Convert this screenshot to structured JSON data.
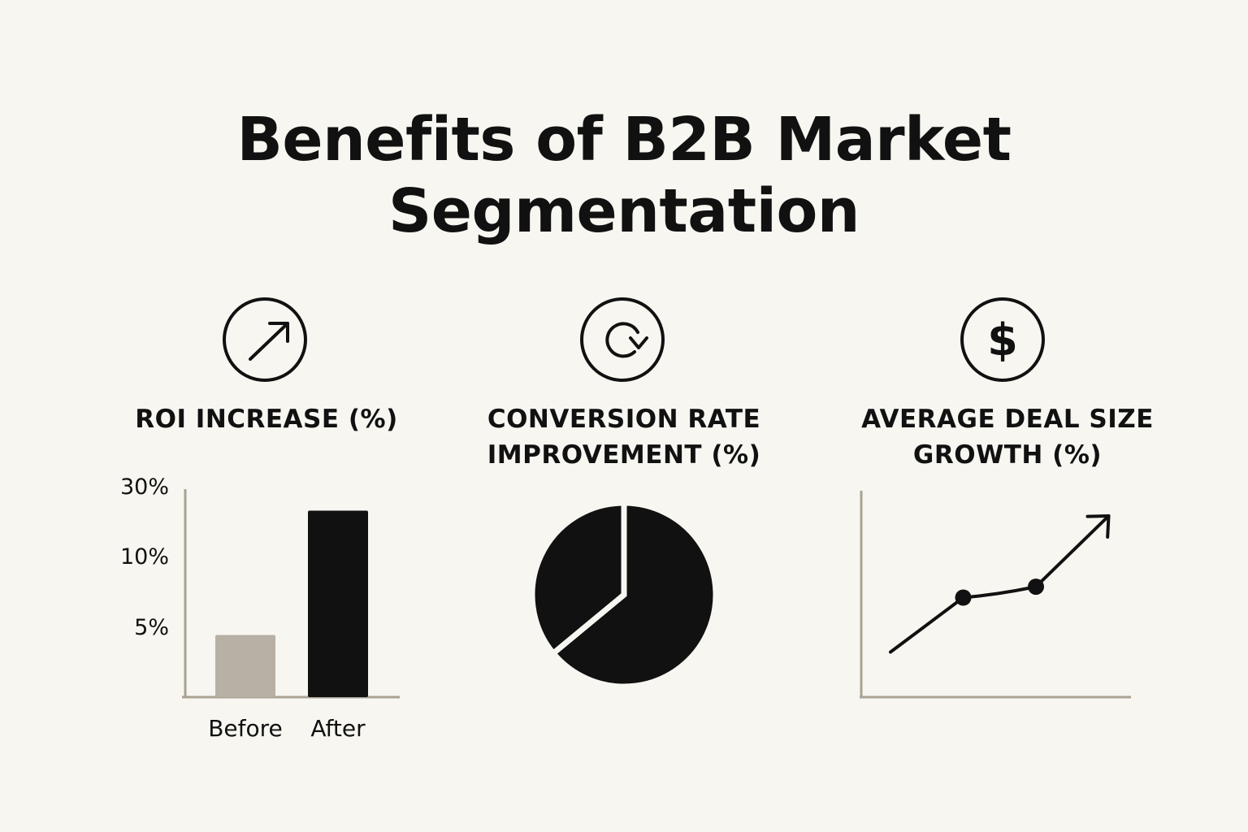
{
  "title": {
    "line1": "Benefits of B2B Market",
    "line2": "Segmentation"
  },
  "colors": {
    "background": "#f7f6f1",
    "ink": "#111111",
    "before_bar": "#b7b0a4",
    "axis": "#aaa294"
  },
  "panels": [
    {
      "icon": "arrow-up-right-icon",
      "title_lines": [
        "ROI INCREASE (%)"
      ]
    },
    {
      "icon": "refresh-icon",
      "title_lines": [
        "CONVERSION RATE",
        "IMPROVEMENT (%)"
      ]
    },
    {
      "icon": "dollar-icon",
      "title_lines": [
        "AVERAGE DEAL SIZE",
        "GROWTH (%)"
      ]
    }
  ],
  "chart_data": [
    {
      "type": "bar",
      "title": "ROI INCREASE (%)",
      "categories": [
        "Before",
        "After"
      ],
      "values": [
        9,
        27
      ],
      "tick_labels": [
        "30%",
        "10%",
        "5%"
      ],
      "bar_colors": [
        "#b7b0a4",
        "#111111"
      ],
      "grid": false
    },
    {
      "type": "pie",
      "title": "CONVERSION RATE IMPROVEMENT (%)",
      "slices": [
        {
          "value": 64
        },
        {
          "value": 36
        }
      ],
      "color": "#111111",
      "grid": false
    },
    {
      "type": "line",
      "title": "AVERAGE DEAL SIZE GROWTH (%)",
      "x": [
        0,
        1,
        2,
        3
      ],
      "y": [
        1,
        3,
        3.4,
        6
      ],
      "markers": [
        false,
        true,
        true,
        false
      ],
      "end_arrow": true,
      "grid": false
    }
  ]
}
